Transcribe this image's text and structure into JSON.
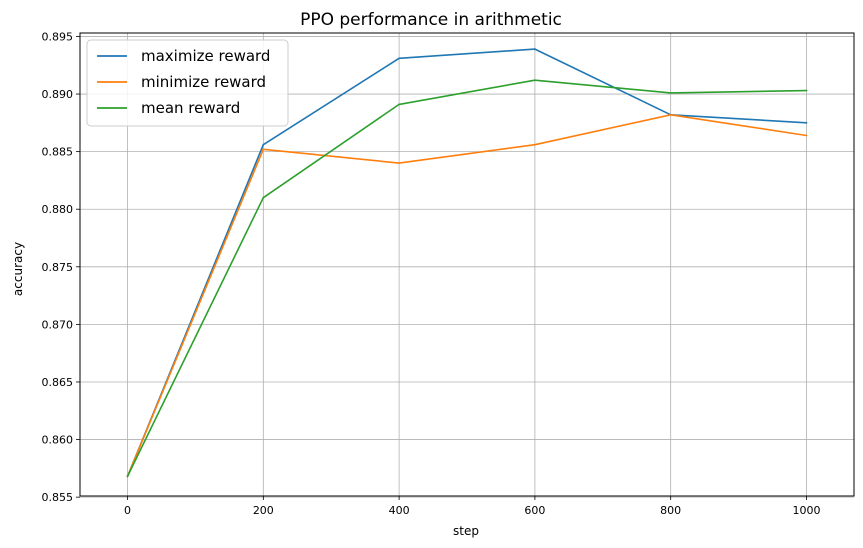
{
  "chart_data": {
    "type": "line",
    "title": "PPO performance in arithmetic",
    "xlabel": "step",
    "ylabel": "accuracy",
    "x": [
      0,
      200,
      400,
      600,
      800,
      1000
    ],
    "xticks": [
      0,
      200,
      400,
      600,
      800,
      1000
    ],
    "yticks": [
      0.855,
      0.86,
      0.865,
      0.87,
      0.875,
      0.88,
      0.885,
      0.89,
      0.895
    ],
    "ytick_labels": [
      "0.855",
      "0.860",
      "0.865",
      "0.870",
      "0.875",
      "0.880",
      "0.885",
      "0.890",
      "0.895"
    ],
    "xlim": [
      -70,
      1070
    ],
    "ylim": [
      0.8551,
      0.8953
    ],
    "grid": true,
    "legend_position": "upper-left",
    "series": [
      {
        "name": "maximize reward",
        "color": "#1f77b4",
        "values": [
          0.8568,
          0.8856,
          0.8931,
          0.8939,
          0.8882,
          0.8875
        ]
      },
      {
        "name": "minimize reward",
        "color": "#ff7f0e",
        "values": [
          0.8568,
          0.8852,
          0.884,
          0.8856,
          0.8882,
          0.8864
        ]
      },
      {
        "name": "mean reward",
        "color": "#2ca02c",
        "values": [
          0.8568,
          0.881,
          0.8891,
          0.8912,
          0.8901,
          0.8903
        ]
      }
    ]
  }
}
